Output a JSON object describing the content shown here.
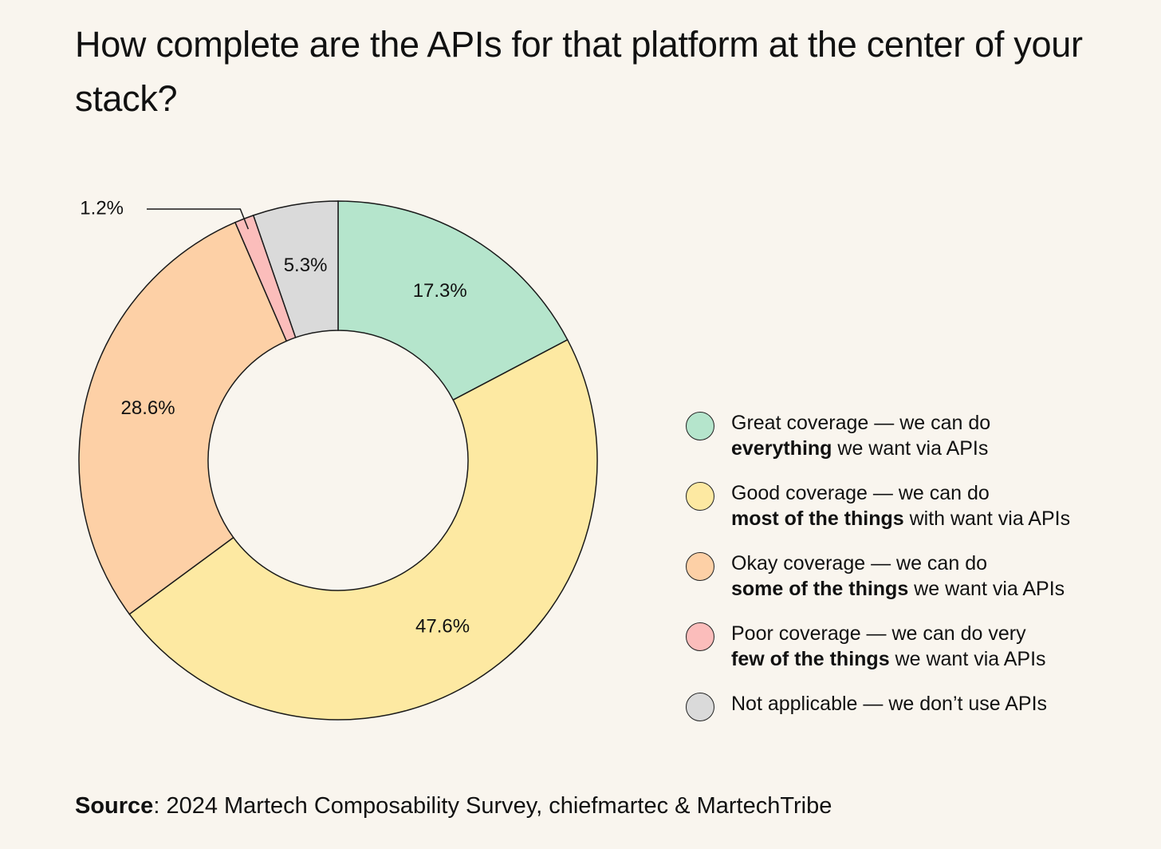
{
  "chart_data": {
    "type": "pie",
    "variant": "donut",
    "title": "How complete are the APIs for that platform at the center of your stack?",
    "unit": "%",
    "slices": [
      {
        "label": "Great coverage",
        "value": 17.3,
        "value_label": "17.3%",
        "color": "#b5e5cc"
      },
      {
        "label": "Good coverage",
        "value": 47.6,
        "value_label": "47.6%",
        "color": "#fde9a2"
      },
      {
        "label": "Okay coverage",
        "value": 28.6,
        "value_label": "28.6%",
        "color": "#fdd0a6"
      },
      {
        "label": "Poor coverage",
        "value": 1.2,
        "value_label": "1.2%",
        "color": "#fbbdbb"
      },
      {
        "label": "Not applicable",
        "value": 5.3,
        "value_label": "5.3%",
        "color": "#dadada"
      }
    ],
    "legend": [
      {
        "line1": "Great coverage — we can do",
        "bold": "everything",
        "rest": " we want via APIs",
        "color": "#b5e5cc"
      },
      {
        "line1": "Good coverage — we can do",
        "bold": "most of the things",
        "rest": " with want via APIs",
        "color": "#fde9a2"
      },
      {
        "line1": "Okay coverage — we can do",
        "bold": "some of the things",
        "rest": " we want via APIs",
        "color": "#fdd0a6"
      },
      {
        "line1": "Poor coverage — we can do very",
        "bold": "few of the things",
        "rest": " we want via APIs",
        "color": "#fbbdbb"
      },
      {
        "line1": "Not applicable — we don’t use APIs",
        "bold": "",
        "rest": "",
        "color": "#dadada"
      }
    ],
    "legend_position": "right"
  },
  "source": {
    "label": "Source",
    "text": ": 2024 Martech Composability Survey, chiefmartec & MartechTribe"
  }
}
